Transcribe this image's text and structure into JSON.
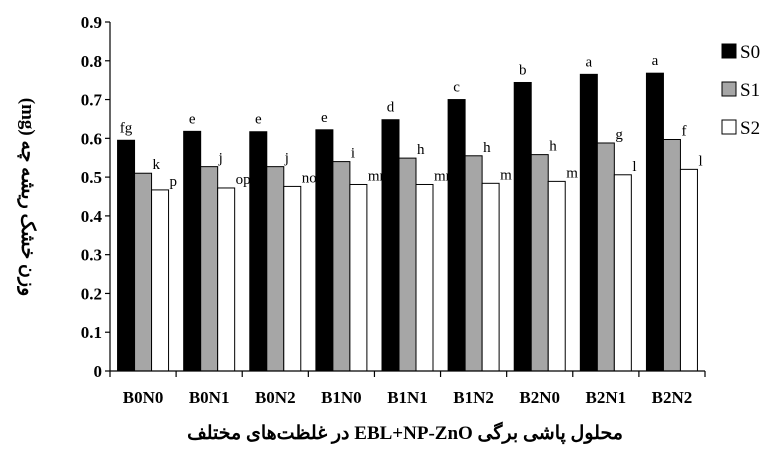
{
  "chart_data": {
    "type": "bar",
    "title": "",
    "xlabel": "محلول پاشی برگی EBL+NP-ZnO در غلظت‌های مختلف",
    "ylabel": "وزن خشک ریشه چه (mg)",
    "ylim": [
      0,
      0.9
    ],
    "yticks": [
      "0",
      "0.1",
      "0.2",
      "0.3",
      "0.4",
      "0.5",
      "0.6",
      "0.7",
      "0.8",
      "0.9"
    ],
    "categories": [
      "B0N0",
      "B0N1",
      "B0N2",
      "B1N0",
      "B1N1",
      "B1N2",
      "B2N0",
      "B2N1",
      "B2N2"
    ],
    "series": [
      {
        "name": "S0",
        "color": "#000000",
        "values": [
          0.595,
          0.618,
          0.617,
          0.622,
          0.648,
          0.7,
          0.744,
          0.765,
          0.768
        ],
        "labels": [
          "fg",
          "e",
          "e",
          "e",
          "d",
          "c",
          "b",
          "a",
          "a"
        ]
      },
      {
        "name": "S1",
        "color": "#a6a6a6",
        "values": [
          0.51,
          0.527,
          0.527,
          0.54,
          0.549,
          0.555,
          0.558,
          0.588,
          0.597
        ],
        "labels": [
          "k",
          "j",
          "j",
          "i",
          "h",
          "h",
          "h",
          "g",
          "f"
        ]
      },
      {
        "name": "S2",
        "color": "#ffffff",
        "values": [
          0.467,
          0.472,
          0.476,
          0.481,
          0.481,
          0.484,
          0.489,
          0.506,
          0.52
        ],
        "labels": [
          "p",
          "op",
          "no",
          "mn",
          "mn",
          "m",
          "m",
          "l",
          "l"
        ]
      }
    ],
    "legend": "right",
    "grid": false
  }
}
